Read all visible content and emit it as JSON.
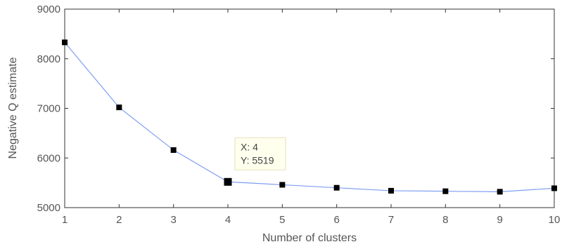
{
  "chart_data": {
    "type": "line",
    "title": "",
    "xlabel": "Number of clusters",
    "ylabel": "Negative Q estimate",
    "x": [
      1,
      2,
      3,
      4,
      5,
      6,
      7,
      8,
      9,
      10
    ],
    "series": [
      {
        "values": [
          8330,
          7020,
          6160,
          5519,
          5460,
          5400,
          5340,
          5330,
          5320,
          5390
        ]
      }
    ],
    "xlim": [
      1,
      10
    ],
    "ylim": [
      5000,
      9000
    ],
    "x_ticks": [
      "1",
      "2",
      "3",
      "4",
      "5",
      "6",
      "7",
      "8",
      "9",
      "10"
    ],
    "y_ticks": [
      "5000",
      "6000",
      "7000",
      "8000",
      "9000"
    ],
    "grid": false,
    "line_color": "#7d9ef2",
    "marker_color": "#000000",
    "datatip": {
      "point_index": 3,
      "x_text": "X: 4",
      "y_text": "Y: 5519"
    }
  }
}
